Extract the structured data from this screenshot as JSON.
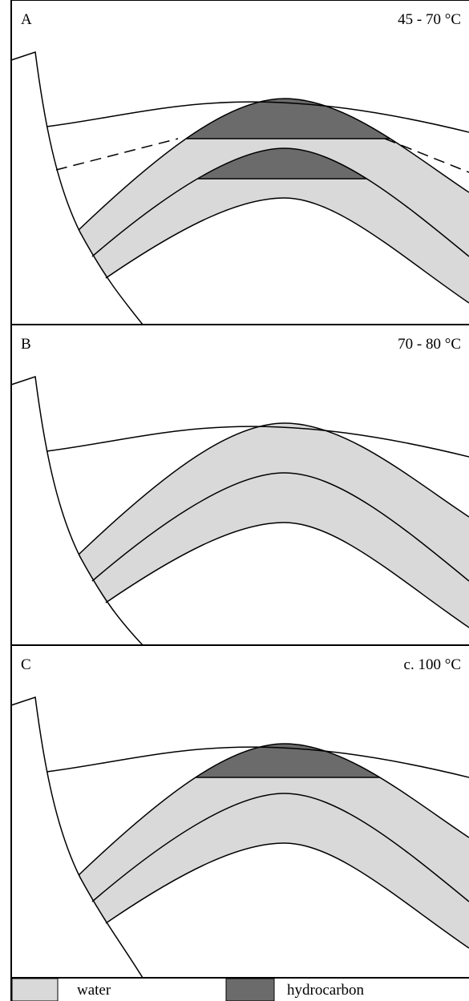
{
  "panels": [
    {
      "label": "A",
      "temperature": "45 - 70 °C"
    },
    {
      "label": "B",
      "temperature": "70 - 80 °C"
    },
    {
      "label": "C",
      "temperature": "c. 100 °C"
    }
  ],
  "legend": [
    {
      "label": "water"
    },
    {
      "label": "hydrocarbon"
    }
  ]
}
